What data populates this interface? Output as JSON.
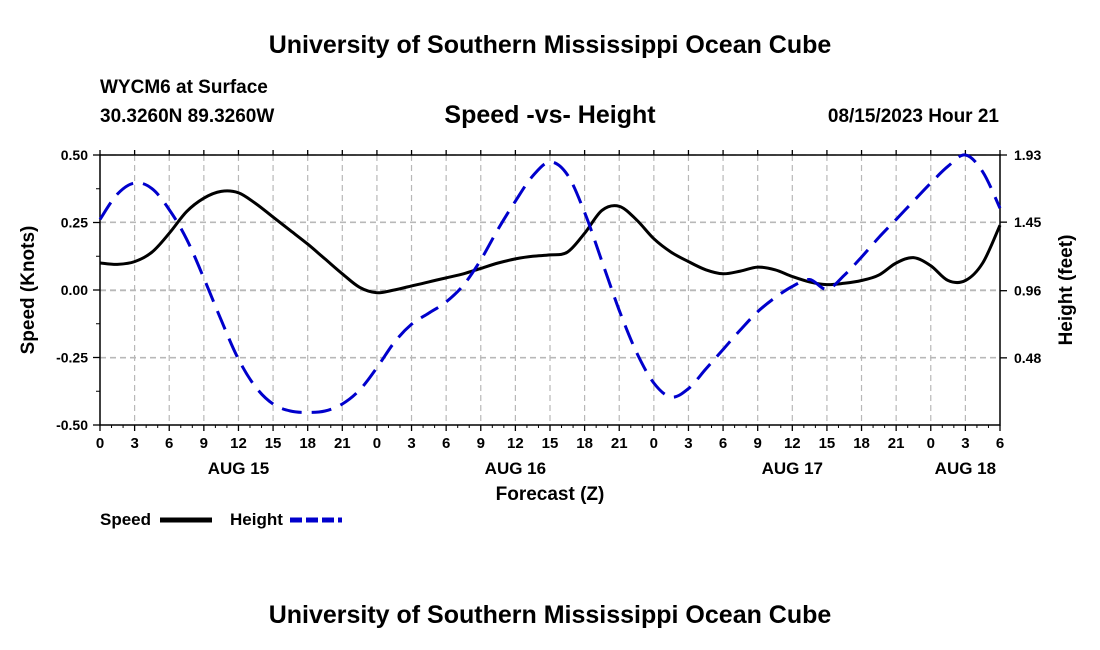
{
  "header": {
    "title": "University of Southern Mississippi Ocean Cube",
    "station": "WYCM6 at Surface",
    "location": "30.3260N  89.3260W",
    "subtitle": "Speed -vs- Height",
    "timestamp": "08/15/2023 Hour 21"
  },
  "footer": {
    "title": "University of Southern Mississippi Ocean Cube"
  },
  "chart_data": {
    "type": "line",
    "title": "Speed -vs- Height",
    "xlabel": "Forecast (Z)",
    "ylabel": "Speed (Knots)",
    "y2label": "Height (feet)",
    "x_range": [
      0,
      78
    ],
    "x_ticks": [
      {
        "x": 0,
        "label": "0"
      },
      {
        "x": 3,
        "label": "3"
      },
      {
        "x": 6,
        "label": "6"
      },
      {
        "x": 9,
        "label": "9"
      },
      {
        "x": 12,
        "label": "12"
      },
      {
        "x": 15,
        "label": "15"
      },
      {
        "x": 18,
        "label": "18"
      },
      {
        "x": 21,
        "label": "21"
      },
      {
        "x": 24,
        "label": "0"
      },
      {
        "x": 27,
        "label": "3"
      },
      {
        "x": 30,
        "label": "6"
      },
      {
        "x": 33,
        "label": "9"
      },
      {
        "x": 36,
        "label": "12"
      },
      {
        "x": 39,
        "label": "15"
      },
      {
        "x": 42,
        "label": "18"
      },
      {
        "x": 45,
        "label": "21"
      },
      {
        "x": 48,
        "label": "0"
      },
      {
        "x": 51,
        "label": "3"
      },
      {
        "x": 54,
        "label": "6"
      },
      {
        "x": 57,
        "label": "9"
      },
      {
        "x": 60,
        "label": "12"
      },
      {
        "x": 63,
        "label": "15"
      },
      {
        "x": 66,
        "label": "18"
      },
      {
        "x": 69,
        "label": "21"
      },
      {
        "x": 72,
        "label": "0"
      },
      {
        "x": 75,
        "label": "3"
      },
      {
        "x": 78,
        "label": "6"
      }
    ],
    "day_labels": [
      {
        "x": 12,
        "label": "AUG 15"
      },
      {
        "x": 36,
        "label": "AUG 16"
      },
      {
        "x": 60,
        "label": "AUG 17"
      },
      {
        "x": 75,
        "label": "AUG 18"
      }
    ],
    "y_left": {
      "range": [
        -0.5,
        0.5
      ],
      "ticks": [
        -0.5,
        -0.25,
        0.0,
        0.25,
        0.5
      ],
      "labels": [
        "-0.50",
        "-0.25",
        "0.00",
        "0.25",
        "0.50"
      ]
    },
    "y_right": {
      "range": [
        0.0,
        1.93
      ],
      "ticks": [
        0.48,
        0.96,
        1.45,
        1.93
      ],
      "labels": [
        "0.48",
        "0.96",
        "1.45",
        "1.93"
      ]
    },
    "grid": true,
    "legend_position": "bottom-left",
    "series": [
      {
        "name": "Speed",
        "axis": "left",
        "color": "#000000",
        "dash": "solid",
        "x": [
          0,
          1.5,
          3,
          4.5,
          6,
          7.5,
          9,
          10.5,
          12,
          13.5,
          15,
          16.5,
          18,
          19.5,
          21,
          22.5,
          24,
          25.5,
          27,
          28.5,
          30,
          31.5,
          33,
          34.5,
          36,
          37.5,
          39,
          40.5,
          42,
          43.5,
          45,
          46.5,
          48,
          49.5,
          51,
          52.5,
          54,
          55.5,
          57,
          58.5,
          60,
          61.5,
          63,
          64.5,
          66,
          67.5,
          69,
          70.5,
          72,
          73.5,
          75,
          76.5,
          78
        ],
        "values": [
          0.1,
          0.095,
          0.105,
          0.14,
          0.21,
          0.29,
          0.34,
          0.365,
          0.36,
          0.32,
          0.27,
          0.22,
          0.17,
          0.115,
          0.06,
          0.01,
          -0.01,
          0.0,
          0.015,
          0.03,
          0.045,
          0.06,
          0.08,
          0.1,
          0.115,
          0.125,
          0.13,
          0.14,
          0.21,
          0.295,
          0.31,
          0.26,
          0.19,
          0.14,
          0.105,
          0.075,
          0.06,
          0.07,
          0.085,
          0.075,
          0.05,
          0.03,
          0.02,
          0.025,
          0.035,
          0.055,
          0.1,
          0.12,
          0.09,
          0.035,
          0.035,
          0.1,
          0.24
        ]
      },
      {
        "name": "Height",
        "axis": "right",
        "color": "#0000cc",
        "dash": "dashed",
        "x": [
          0,
          1.5,
          3,
          4.5,
          6,
          7.5,
          9,
          10.5,
          12,
          13.5,
          15,
          16.5,
          18,
          19.5,
          21,
          22.5,
          24,
          25.5,
          27,
          28.5,
          30,
          31.5,
          33,
          34.5,
          36,
          37.5,
          39,
          40.5,
          42,
          43.5,
          45,
          46.5,
          48,
          49.5,
          51,
          52.5,
          54,
          55.5,
          57,
          58.5,
          60,
          61.5,
          63,
          64.5,
          66,
          67.5,
          69,
          70.5,
          72,
          73.5,
          75,
          76.5,
          78
        ],
        "values": [
          1.47,
          1.65,
          1.73,
          1.69,
          1.54,
          1.33,
          1.05,
          0.75,
          0.47,
          0.27,
          0.15,
          0.1,
          0.09,
          0.1,
          0.15,
          0.25,
          0.41,
          0.59,
          0.72,
          0.8,
          0.88,
          1.0,
          1.18,
          1.4,
          1.6,
          1.78,
          1.88,
          1.79,
          1.52,
          1.17,
          0.82,
          0.52,
          0.3,
          0.2,
          0.26,
          0.4,
          0.54,
          0.68,
          0.81,
          0.91,
          0.99,
          1.04,
          0.97,
          1.07,
          1.2,
          1.34,
          1.47,
          1.6,
          1.73,
          1.85,
          1.93,
          1.81,
          1.55
        ]
      }
    ]
  }
}
